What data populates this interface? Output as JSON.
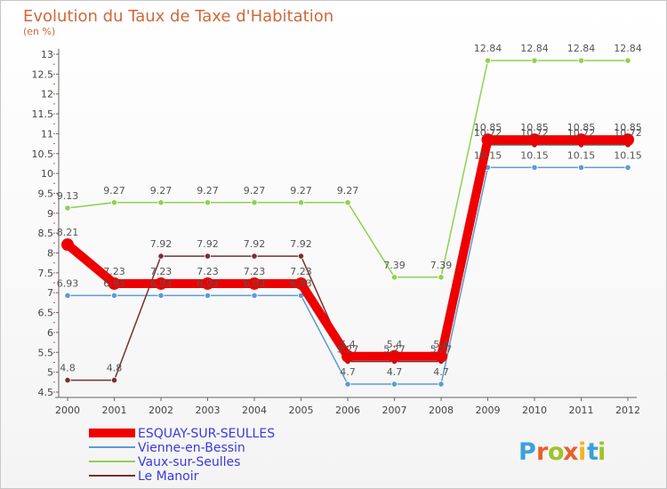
{
  "chart_data": {
    "type": "line",
    "title": "Evolution du Taux de Taxe d'Habitation",
    "subtitle": "(en %)",
    "x": [
      "2000",
      "2001",
      "2002",
      "2003",
      "2004",
      "2005",
      "2006",
      "2007",
      "2008",
      "2009",
      "2010",
      "2011",
      "2012"
    ],
    "ylim": [
      4.5,
      13
    ],
    "yticks": [
      "4.5",
      "5",
      "5.5",
      "6",
      "6.5",
      "7",
      "7.5",
      "8",
      "8.5",
      "9",
      "9.5",
      "10",
      "10.5",
      "11",
      "11.5",
      "12",
      "12.5",
      "13"
    ],
    "grid": false,
    "legend_position": "bottom-left",
    "series": [
      {
        "name": "ESQUAY-SUR-SEULLES",
        "color": "#ee0000",
        "values": [
          8.21,
          7.23,
          7.23,
          7.23,
          7.23,
          7.23,
          5.4,
          5.4,
          5.4,
          10.85,
          10.85,
          10.85,
          10.85
        ],
        "labels": [
          "8.21",
          "7.23",
          "7.23",
          "7.23",
          "7.23",
          "7.23",
          "5.4",
          "5.4",
          "5.4",
          "10.85",
          "10.85",
          "10.85",
          "10.85"
        ]
      },
      {
        "name": "Vienne-en-Bessin",
        "color": "#5b9bd5",
        "values": [
          6.93,
          6.93,
          6.93,
          6.93,
          6.93,
          6.93,
          4.7,
          4.7,
          4.7,
          10.15,
          10.15,
          10.15,
          10.15
        ],
        "labels": [
          "6.93",
          "6.93",
          "6.93",
          "6.93",
          "6.93",
          "6.93",
          "4.7",
          "4.7",
          "4.7",
          "10.15",
          "10.15",
          "10.15",
          "10.15"
        ]
      },
      {
        "name": "Vaux-sur-Seulles",
        "color": "#8ed24e",
        "values": [
          9.13,
          9.27,
          9.27,
          9.27,
          9.27,
          9.27,
          9.27,
          7.39,
          7.39,
          12.84,
          12.84,
          12.84,
          12.84
        ],
        "labels": [
          "9.13",
          "9.27",
          "9.27",
          "9.27",
          "9.27",
          "9.27",
          "9.27",
          "7.39",
          "7.39",
          "12.84",
          "12.84",
          "12.84",
          "12.84"
        ]
      },
      {
        "name": "Le Manoir",
        "color": "#7a2f2f",
        "values": [
          4.8,
          4.8,
          7.92,
          7.92,
          7.92,
          7.92,
          5.27,
          5.27,
          5.27,
          10.72,
          10.72,
          10.72,
          10.72
        ],
        "labels": [
          "4.8",
          "4.8",
          "7.92",
          "7.92",
          "7.92",
          "7.92",
          "5.27",
          "5.27",
          "5.27",
          "10.72",
          "10.72",
          "10.72",
          "10.72"
        ]
      }
    ]
  },
  "brand": {
    "letters": [
      "P",
      "r",
      "o",
      "x",
      "i",
      "t",
      "i"
    ],
    "colors": [
      "#3aa0dc",
      "#e8602c",
      "#9fc32a",
      "#e8602c",
      "#f2b521",
      "#3aa0dc",
      "#9fc32a"
    ]
  }
}
